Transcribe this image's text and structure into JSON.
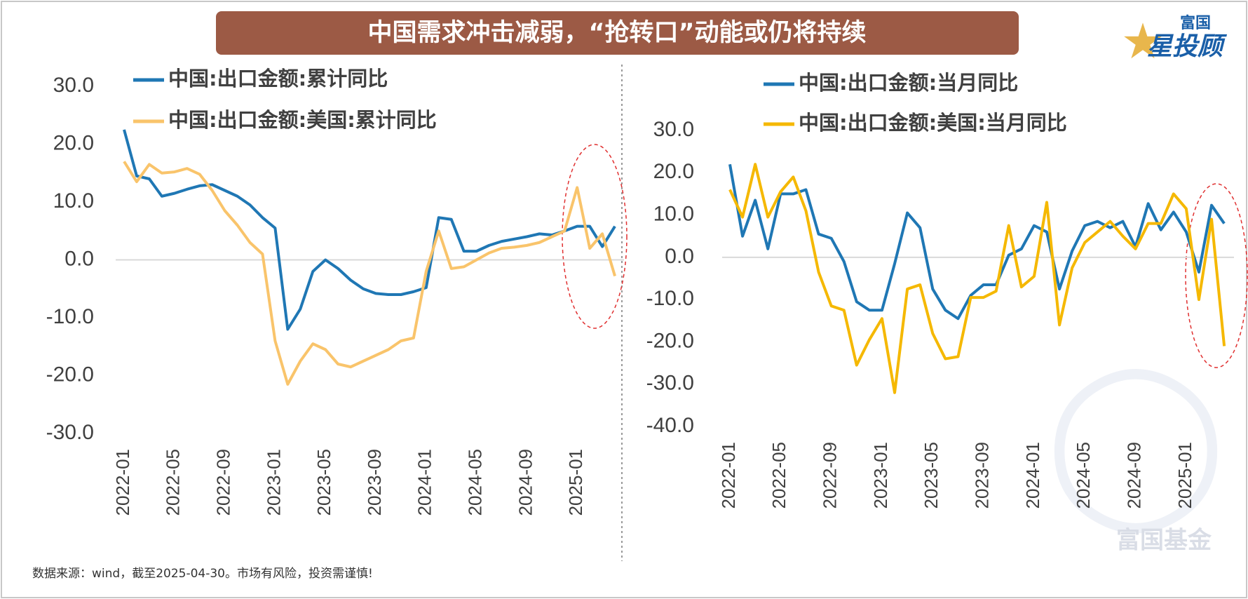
{
  "header": {
    "title": "中国需求冲击减弱，“抢转口”动能或仍将持续",
    "logo_top": "富国",
    "logo_main": "星投顾"
  },
  "footnote": "数据来源：wind，截至2025-04-30。市场有风险，投资需谨慎!",
  "watermark": "富国基金",
  "chart_data": [
    {
      "type": "line",
      "categories": [
        "2022-01",
        null,
        null,
        null,
        "2022-05",
        null,
        null,
        null,
        "2022-09",
        null,
        null,
        null,
        "2023-01",
        null,
        null,
        null,
        "2023-05",
        null,
        null,
        null,
        "2023-09",
        null,
        null,
        null,
        "2024-01",
        null,
        null,
        null,
        "2024-05",
        null,
        null,
        null,
        "2024-09",
        null,
        null,
        null,
        "2025-01",
        null,
        null,
        null
      ],
      "series": [
        {
          "name": "中国:出口金额:累计同比",
          "color": "#1f77b4",
          "values": [
            22.5,
            14.5,
            14.0,
            11.0,
            11.5,
            12.2,
            12.8,
            13.0,
            12.0,
            11.0,
            9.5,
            7.3,
            5.5,
            -12.0,
            -8.5,
            -2.0,
            0.0,
            -1.5,
            -3.5,
            -5.0,
            -5.8,
            -6.0,
            -6.0,
            -5.5,
            -4.8,
            7.3,
            7.0,
            1.5,
            1.5,
            2.5,
            3.2,
            3.6,
            4.0,
            4.5,
            4.3,
            5.0,
            5.8,
            5.8,
            2.3,
            5.8
          ]
        },
        {
          "name": "中国:出口金额:美国:累计同比",
          "color": "#f9c46b",
          "values": [
            17.0,
            13.5,
            16.5,
            15.0,
            15.2,
            15.8,
            14.8,
            12.0,
            8.5,
            6.0,
            3.0,
            1.0,
            -14.0,
            -21.5,
            -17.5,
            -14.5,
            -15.5,
            -18.0,
            -18.5,
            -17.5,
            -16.5,
            -15.5,
            -14.0,
            -13.5,
            -2.0,
            5.0,
            -1.5,
            -1.2,
            0.0,
            1.2,
            2.0,
            2.2,
            2.5,
            3.0,
            4.0,
            5.0,
            12.5,
            2.0,
            4.5,
            -2.8
          ]
        }
      ],
      "ylim": [
        -30,
        30
      ],
      "yticks": [
        {
          "value": 30,
          "label": "30.0"
        },
        {
          "value": 20,
          "label": "20.0"
        },
        {
          "value": 10,
          "label": "10.0"
        },
        {
          "value": 0,
          "label": "0.0"
        },
        {
          "value": -10,
          "label": "-10.0"
        },
        {
          "value": -20,
          "label": "-20.0"
        },
        {
          "value": -30,
          "label": "-30.0"
        }
      ]
    },
    {
      "type": "line",
      "categories": [
        "2022-01",
        null,
        null,
        null,
        "2022-05",
        null,
        null,
        null,
        "2022-09",
        null,
        null,
        null,
        "2023-01",
        null,
        null,
        null,
        "2023-05",
        null,
        null,
        null,
        "2023-09",
        null,
        null,
        null,
        "2024-01",
        null,
        null,
        null,
        "2024-05",
        null,
        null,
        null,
        "2024-09",
        null,
        null,
        null,
        "2025-01",
        null,
        null,
        null
      ],
      "series": [
        {
          "name": "中国:出口金额:当月同比",
          "color": "#1f77b4",
          "values": [
            22.0,
            5.0,
            13.5,
            2.0,
            15.0,
            15.0,
            16.0,
            5.5,
            4.5,
            -1.0,
            -10.5,
            -12.5,
            -12.5,
            -1.5,
            10.5,
            7.0,
            -7.5,
            -12.5,
            -14.5,
            -9.0,
            -6.5,
            -6.5,
            0.5,
            2.0,
            7.5,
            6.0,
            -7.5,
            1.5,
            7.5,
            8.5,
            7.0,
            8.5,
            2.5,
            12.7,
            6.5,
            10.7,
            6.0,
            -3.5,
            12.3,
            8.0
          ]
        },
        {
          "name": "中国:出口金额:美国:当月同比",
          "color": "#f5b800",
          "values": [
            16.0,
            9.5,
            22.0,
            9.5,
            15.5,
            19.0,
            11.0,
            -3.5,
            -11.5,
            -12.5,
            -25.5,
            -19.5,
            -14.5,
            -32.0,
            -7.5,
            -6.5,
            -18.0,
            -24.0,
            -23.5,
            -9.5,
            -9.5,
            -8.0,
            7.5,
            -7.0,
            -4.5,
            13.0,
            -16.0,
            -2.5,
            3.5,
            6.0,
            8.5,
            5.0,
            2.0,
            8.0,
            8.0,
            15.0,
            11.5,
            -10.0,
            9.0,
            -21.0
          ]
        }
      ],
      "ylim": [
        -40,
        30
      ],
      "yticks": [
        {
          "value": 30,
          "label": "30.0"
        },
        {
          "value": 20,
          "label": "20.0"
        },
        {
          "value": 10,
          "label": "10.0"
        },
        {
          "value": 0,
          "label": "0.0"
        },
        {
          "value": -10,
          "label": "-10.0"
        },
        {
          "value": -20,
          "label": "-20.0"
        },
        {
          "value": -30,
          "label": "-30.0"
        },
        {
          "value": -40,
          "label": "-40.0"
        }
      ]
    }
  ]
}
